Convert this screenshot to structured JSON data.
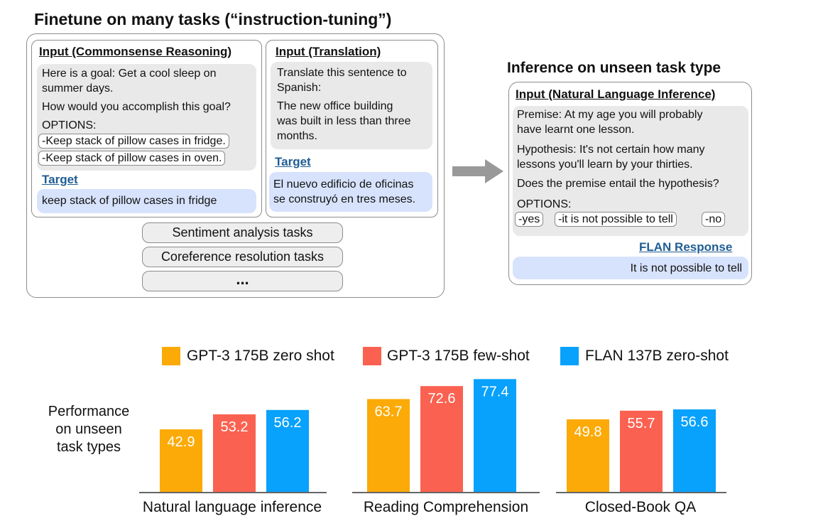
{
  "top_title": "Finetune on many tasks (“instruction-tuning”)",
  "commonsense": {
    "header": "Input (Commonsense Reasoning)",
    "lines": [
      "Here is a goal: Get a cool sleep on",
      "summer days."
    ],
    "question": "How would you accomplish this goal?",
    "options_label": "OPTIONS:",
    "options": [
      "-Keep stack of pillow cases in fridge.",
      "-Keep stack of pillow cases in oven."
    ],
    "target_label": "Target",
    "target": "keep stack of pillow cases in fridge"
  },
  "translation": {
    "header": "Input (Translation)",
    "lines1": [
      "Translate this sentence to",
      "Spanish:"
    ],
    "lines2": [
      "The new office building",
      "was built in less than three",
      "months."
    ],
    "target_label": "Target",
    "target_lines": [
      "El nuevo edificio de oficinas",
      "se construyó en tres meses."
    ]
  },
  "task_pills": [
    "Sentiment analysis tasks",
    "Coreference resolution tasks",
    "..."
  ],
  "inference_title": "Inference on unseen task type",
  "nli": {
    "header": "Input (Natural Language Inference)",
    "premise": [
      "Premise: At my age you will probably",
      "have learnt one lesson."
    ],
    "hypothesis": [
      "Hypothesis: It's not certain how many",
      "lessons you'll learn by your thirties."
    ],
    "question": "Does the premise entail the hypothesis?",
    "options_label": "OPTIONS:",
    "options": [
      "-yes",
      "-it is not possible to tell",
      "-no"
    ],
    "response_label": "FLAN Response",
    "response": "It is not possible to tell"
  },
  "colors": {
    "gpt3_zero": "#fbaa07",
    "gpt3_few": "#fb6150",
    "flan": "#08a1fb",
    "arrow": "#999999"
  },
  "chart_data": {
    "type": "bar",
    "ylabel": [
      "Performance",
      "on unseen",
      "task types"
    ],
    "series": [
      {
        "name": "GPT-3 175B zero shot",
        "color": "#fbaa07"
      },
      {
        "name": "GPT-3 175B few-shot",
        "color": "#fb6150"
      },
      {
        "name": "FLAN 137B zero-shot",
        "color": "#08a1fb"
      }
    ],
    "groups": [
      {
        "category": "Natural language inference",
        "values": [
          42.9,
          53.2,
          56.2
        ],
        "labels": [
          "42.9",
          "53.2",
          "56.2"
        ]
      },
      {
        "category": "Reading Comprehension",
        "values": [
          63.7,
          72.6,
          77.4
        ],
        "labels": [
          "63.7",
          "72.6",
          "77.4"
        ]
      },
      {
        "category": "Closed-Book QA",
        "values": [
          49.8,
          55.7,
          56.6
        ],
        "labels": [
          "49.8",
          "55.7",
          "56.6"
        ]
      }
    ]
  }
}
